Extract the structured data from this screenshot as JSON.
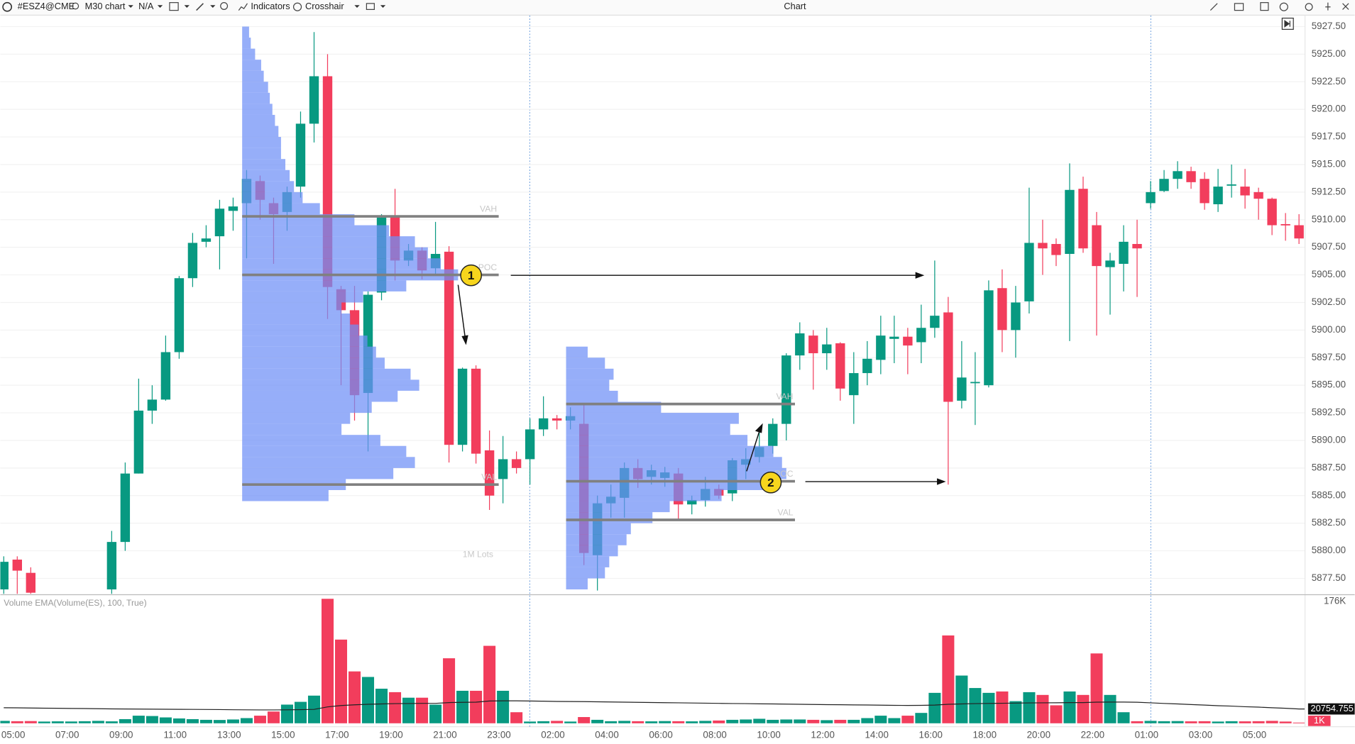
{
  "toolbar": {
    "symbol": "#ESZ4@CME",
    "interval": "M30 chart",
    "mode": "N/A",
    "indicators": "Indicators",
    "crosshair": "Crosshair",
    "title": "Chart"
  },
  "chart_data": {
    "type": "candlestick",
    "categories": [
      "05:00",
      null,
      null,
      null,
      "07:00",
      null,
      null,
      null,
      "09:00",
      null,
      null,
      null,
      "11:00",
      null,
      null,
      null,
      "13:00",
      null,
      null,
      null,
      "15:00",
      null,
      null,
      null,
      "17:00",
      null,
      null,
      null,
      "19:00",
      null,
      null,
      null,
      "21:00",
      null,
      null,
      null,
      "23:00",
      null,
      null,
      null,
      "02:00",
      null,
      null,
      null,
      "04:00",
      null,
      null,
      null,
      "06:00",
      null,
      null,
      null,
      "08:00",
      null,
      null,
      null,
      "10:00",
      null,
      null,
      null,
      "12:00",
      null,
      null,
      null,
      "14:00",
      null,
      null,
      null,
      "16:00",
      null,
      null,
      null,
      "18:00",
      null,
      null,
      null,
      "20:00",
      null,
      null,
      null,
      "22:00",
      null,
      null,
      null,
      "01:00",
      null,
      null,
      null,
      "03:00",
      null,
      null,
      null,
      "05:00",
      null,
      null,
      null,
      null
    ],
    "open": [
      5876.5,
      5879.2,
      5878,
      null,
      null,
      null,
      null,
      null,
      5876.5,
      5880.8,
      5887,
      5892.7,
      5893.7,
      5898,
      5904.7,
      5908,
      5908.5,
      5910.8,
      5911.5,
      5913.5,
      5911.5,
      5910.7,
      5913,
      5918.7,
      5923,
      5903.7,
      5901.8,
      5894.3,
      5903.4,
      5910.3,
      5906.3,
      5907.2,
      5905.6,
      5907.1,
      5889.6,
      5896.5,
      5889.1,
      5886.5,
      5888.3,
      5888.3,
      5891,
      5892,
      5891.8,
      5891.5,
      5879.6,
      5884.3,
      5884.8,
      5887.5,
      5886.7,
      5886.6,
      5887,
      5884.2,
      5884.6,
      5885.6,
      5885.2,
      5887.8,
      5888.5,
      5889.5,
      5891.5,
      5897.7,
      5899.5,
      5897.9,
      5898.8,
      5894.1,
      5896.1,
      5897.3,
      5899.2,
      5899.4,
      5898.9,
      5900.2,
      5901.6,
      5893.6,
      5895.2,
      5895,
      5903.8,
      5900,
      5902.6,
      5907.9,
      5907.8,
      5906.9,
      5912.8,
      5909.5,
      5905.7,
      5906,
      5907.8,
      5911.5,
      5912.6,
      5913.7,
      5914.4,
      5913.7,
      5911.4,
      5913.1,
      5913,
      5912.5,
      5911.9,
      5909.6,
      5909.5
    ],
    "high": [
      5879.5,
      5879.5,
      5878.5,
      null,
      null,
      null,
      null,
      null,
      5881.8,
      5888,
      5895.6,
      5895,
      5899.5,
      5904.9,
      5908.8,
      5909.5,
      5911.8,
      5912,
      5914.5,
      5914,
      5912,
      5913,
      5919.8,
      5927,
      5925,
      5904,
      5904,
      5903.5,
      5910.5,
      5912.8,
      5907.8,
      5907.5,
      5909.8,
      5907.6,
      5896.6,
      5896.8,
      5890.9,
      5890.4,
      5889,
      5892,
      5894,
      5892.3,
      5893,
      5893.4,
      5885,
      5886,
      5888,
      5888.3,
      5887.8,
      5887.6,
      5887.5,
      5885,
      5886.7,
      5886,
      5888.4,
      5889.3,
      5891,
      5892,
      5897.9,
      5900.7,
      5900,
      5900.2,
      5898.9,
      5898,
      5899,
      5901.3,
      5901.3,
      5900.2,
      5902.3,
      5906.3,
      5903,
      5899,
      5898,
      5904.5,
      5905.5,
      5904,
      5912.9,
      5910,
      5908.3,
      5915.1,
      5913.9,
      5910.7,
      5907,
      5909.5,
      5910,
      5913.5,
      5914.5,
      5915.3,
      5914.8,
      5914.3,
      5914.6,
      5915,
      5914.6,
      5912.9,
      5912,
      5910.6,
      5910.5
    ],
    "low": [
      5876,
      5876,
      5876,
      null,
      null,
      null,
      null,
      null,
      5876,
      5880,
      5887,
      5891.5,
      5893.6,
      5897.4,
      5903.9,
      5907.5,
      5905.5,
      5909,
      5906.5,
      5910,
      5906,
      5909,
      5912,
      5917,
      5901,
      5895,
      5891.8,
      5889,
      5902.7,
      5904.5,
      5905.8,
      5904.6,
      5905,
      5888,
      5889,
      5887.9,
      5883.7,
      5884.3,
      5887,
      5886,
      5890.4,
      5891,
      5891,
      5878.7,
      5876.4,
      5883,
      5883,
      5885.7,
      5886,
      5885.8,
      5882.9,
      5883.3,
      5884,
      5884.7,
      5884.5,
      5886.5,
      5888,
      5888.8,
      5890,
      5896.4,
      5894.6,
      5896.4,
      5893.6,
      5891.5,
      5895,
      5896,
      5897,
      5896,
      5897,
      5899.3,
      5886,
      5892.9,
      5891.4,
      5894.8,
      5898,
      5897.5,
      5901.5,
      5905,
      5905.8,
      5899,
      5907,
      5899.5,
      5901.4,
      5903.5,
      5903,
      5911,
      5912.5,
      5912.8,
      5912.8,
      5910.9,
      5910.7,
      5912,
      5911,
      5910,
      5908.6,
      5908.1,
      5907.8
    ],
    "close": [
      5879,
      5878.2,
      5876.2,
      null,
      null,
      null,
      null,
      null,
      5880.8,
      5887,
      5892.7,
      5893.7,
      5898,
      5904.7,
      5907.9,
      5908.3,
      5911,
      5911.2,
      5913.7,
      5911.8,
      5910.5,
      5912.5,
      5918.7,
      5923,
      5903.9,
      5901.8,
      5894.1,
      5903.2,
      5910.2,
      5906.3,
      5907.2,
      5905.4,
      5906.9,
      5889.6,
      5896.5,
      5888.8,
      5885,
      5888.3,
      5887.5,
      5891,
      5892,
      5891.8,
      5892.2,
      5879.8,
      5884.3,
      5884.9,
      5887.5,
      5886.5,
      5887.3,
      5887.1,
      5884.2,
      5884.6,
      5885.6,
      5885,
      5888.2,
      5888.3,
      5889.4,
      5891.5,
      5897.7,
      5899.7,
      5897.9,
      5898.7,
      5894.7,
      5896.1,
      5897.4,
      5899.5,
      5899.4,
      5898.6,
      5900.2,
      5901.3,
      5893.5,
      5895.7,
      5895.3,
      5903.6,
      5900,
      5902.5,
      5907.9,
      5907.4,
      5906.8,
      5912.7,
      5907.4,
      5905.8,
      5906.3,
      5908,
      5907.4,
      5912.5,
      5913.7,
      5914.4,
      5913.4,
      5911.5,
      5913,
      5913.2,
      5912.2,
      5911.9,
      5909.5,
      5909.5,
      5908.3
    ],
    "up_color": "#089981",
    "down_color": "#f23d5c",
    "ylim": [
      5876.1,
      5928.5
    ],
    "yticks": [
      {
        "value": 5877.5,
        "label": "5877.50"
      },
      {
        "value": 5880,
        "label": "5880.00"
      },
      {
        "value": 5882.5,
        "label": "5882.50"
      },
      {
        "value": 5885,
        "label": "5885.00"
      },
      {
        "value": 5887.5,
        "label": "5887.50"
      },
      {
        "value": 5890,
        "label": "5890.00"
      },
      {
        "value": 5892.5,
        "label": "5892.50"
      },
      {
        "value": 5895,
        "label": "5895.00"
      },
      {
        "value": 5897.5,
        "label": "5897.50"
      },
      {
        "value": 5900,
        "label": "5900.00"
      },
      {
        "value": 5902.5,
        "label": "5902.50"
      },
      {
        "value": 5905,
        "label": "5905.00"
      },
      {
        "value": 5907.5,
        "label": "5907.50"
      },
      {
        "value": 5910,
        "label": "5910.00"
      },
      {
        "value": 5912.5,
        "label": "5912.50"
      },
      {
        "value": 5915,
        "label": "5915.00"
      },
      {
        "value": 5917.5,
        "label": "5917.50"
      },
      {
        "value": 5920,
        "label": "5920.00"
      },
      {
        "value": 5922.5,
        "label": "5922.50"
      },
      {
        "value": 5925,
        "label": "5925.00"
      },
      {
        "value": 5927.5,
        "label": "5927.50"
      }
    ],
    "grid": true,
    "profiles": [
      {
        "color": "#6e8ff7",
        "levels": [
          5927,
          5926,
          5925,
          5924,
          5923,
          5922,
          5921,
          5920,
          5919,
          5918,
          5917,
          5916,
          5915,
          5914,
          5913,
          5912,
          5911,
          5910,
          5909,
          5908,
          5907,
          5906,
          5905,
          5904,
          5903,
          5902,
          5901,
          5900,
          5899,
          5898,
          5897,
          5896,
          5895,
          5894,
          5893,
          5892,
          5891,
          5890,
          5889,
          5888,
          5887,
          5886,
          5885
        ],
        "values": [
          8,
          10,
          15,
          22,
          25,
          30,
          32,
          35,
          38,
          42,
          45,
          45,
          50,
          55,
          60,
          70,
          90,
          130,
          170,
          200,
          215,
          230,
          250,
          190,
          140,
          115,
          125,
          135,
          145,
          155,
          165,
          195,
          205,
          180,
          150,
          125,
          115,
          160,
          190,
          200,
          175,
          120,
          100
        ],
        "vah": 5910.3,
        "poc": 5905,
        "val": 5886,
        "labels": [
          "VAH",
          "POC",
          "VAL"
        ]
      },
      {
        "color": "#6e8ff7",
        "levels": [
          5898,
          5897,
          5896,
          5895,
          5894,
          5893,
          5892,
          5891,
          5890,
          5889,
          5888,
          5887,
          5886,
          5885,
          5884,
          5883,
          5882,
          5881,
          5880,
          5879,
          5878,
          5877
        ],
        "values": [
          25,
          45,
          55,
          50,
          60,
          110,
          200,
          190,
          210,
          240,
          250,
          255,
          245,
          180,
          120,
          100,
          75,
          70,
          60,
          50,
          45,
          25
        ],
        "vah": 5893.3,
        "poc": 5886.3,
        "val": 5882.8,
        "labels": [
          "VAH",
          "POC",
          "VAL"
        ]
      }
    ],
    "profile_scale_label": "1M Lots",
    "annotations": [
      "1",
      "2"
    ],
    "volume": {
      "title": "Volume EMA(Volume(ES), 100, True)",
      "values": [
        3500,
        3000,
        3200,
        2500,
        2800,
        2600,
        3000,
        3500,
        2800,
        6000,
        11000,
        10500,
        8500,
        7000,
        6000,
        5000,
        4800,
        5500,
        7500,
        11000,
        17000,
        27000,
        31000,
        40000,
        180000,
        121000,
        75000,
        67000,
        50000,
        45000,
        37000,
        37000,
        27000,
        94000,
        47000,
        47000,
        112000,
        47000,
        16000,
        2500,
        3000,
        3500,
        2500,
        9000,
        5000,
        3000,
        3500,
        3000,
        2800,
        3200,
        3000,
        2800,
        3500,
        4000,
        5000,
        5500,
        6500,
        5000,
        5500,
        5500,
        5000,
        4500,
        5000,
        5000,
        7500,
        11000,
        7500,
        11000,
        15000,
        44000,
        127000,
        69000,
        51000,
        44000,
        46000,
        32000,
        45000,
        41000,
        26000,
        46000,
        41000,
        101000,
        41000,
        16000,
        3000,
        3500,
        3000,
        3200,
        2800,
        3000,
        2500,
        3000,
        2800,
        3000,
        3500,
        2500,
        1000
      ],
      "value_labels": [
        null,
        null,
        null,
        null,
        null,
        null,
        null,
        null,
        null,
        null,
        null,
        null,
        null,
        null,
        null,
        null,
        null,
        null,
        null,
        null,
        null,
        null,
        null,
        null,
        null,
        null,
        null,
        null,
        null,
        null,
        null,
        null,
        null,
        null,
        null,
        null,
        null,
        null,
        null,
        null,
        null,
        null,
        null,
        null,
        null,
        null,
        null,
        null,
        null,
        null,
        null,
        null,
        null,
        null,
        null,
        null,
        null,
        null,
        null,
        null,
        null,
        null,
        null,
        null,
        null,
        null,
        null,
        null,
        null,
        null,
        null,
        null,
        null,
        null,
        null,
        null,
        null,
        null,
        null,
        null,
        null,
        null,
        null,
        null,
        null,
        null,
        null,
        null,
        null,
        null,
        null,
        null,
        null,
        null,
        null,
        null,
        "1K"
      ],
      "ylim": [
        0,
        184700
      ],
      "yticks": [
        {
          "value": 176000,
          "label": "176K"
        }
      ],
      "ema": {
        "color": "#222222",
        "values": [
          22500,
          22300,
          22100,
          21900,
          21700,
          21500,
          21300,
          21100,
          20900,
          20700,
          20600,
          20500,
          20400,
          20250,
          20100,
          19950,
          19800,
          19650,
          19500,
          19400,
          19400,
          19500,
          19700,
          20100,
          23700,
          25700,
          26700,
          27500,
          28000,
          28400,
          28600,
          28800,
          28800,
          30000,
          30300,
          30600,
          32200,
          32500,
          32500,
          32200,
          31900,
          31600,
          31400,
          31300,
          31100,
          30800,
          30600,
          30300,
          30100,
          29800,
          29600,
          29300,
          29100,
          28800,
          28600,
          28400,
          28100,
          27900,
          27700,
          27400,
          27200,
          27000,
          26800,
          26600,
          26400,
          26200,
          26000,
          25800,
          25900,
          26300,
          27500,
          28000,
          28400,
          28700,
          29000,
          29200,
          29400,
          29600,
          29700,
          29900,
          30000,
          30600,
          30700,
          30700,
          30500,
          29600,
          28700,
          27900,
          27100,
          26300,
          25500,
          24800,
          24000,
          23300,
          22500,
          21700,
          20754.755
        ]
      }
    }
  }
}
